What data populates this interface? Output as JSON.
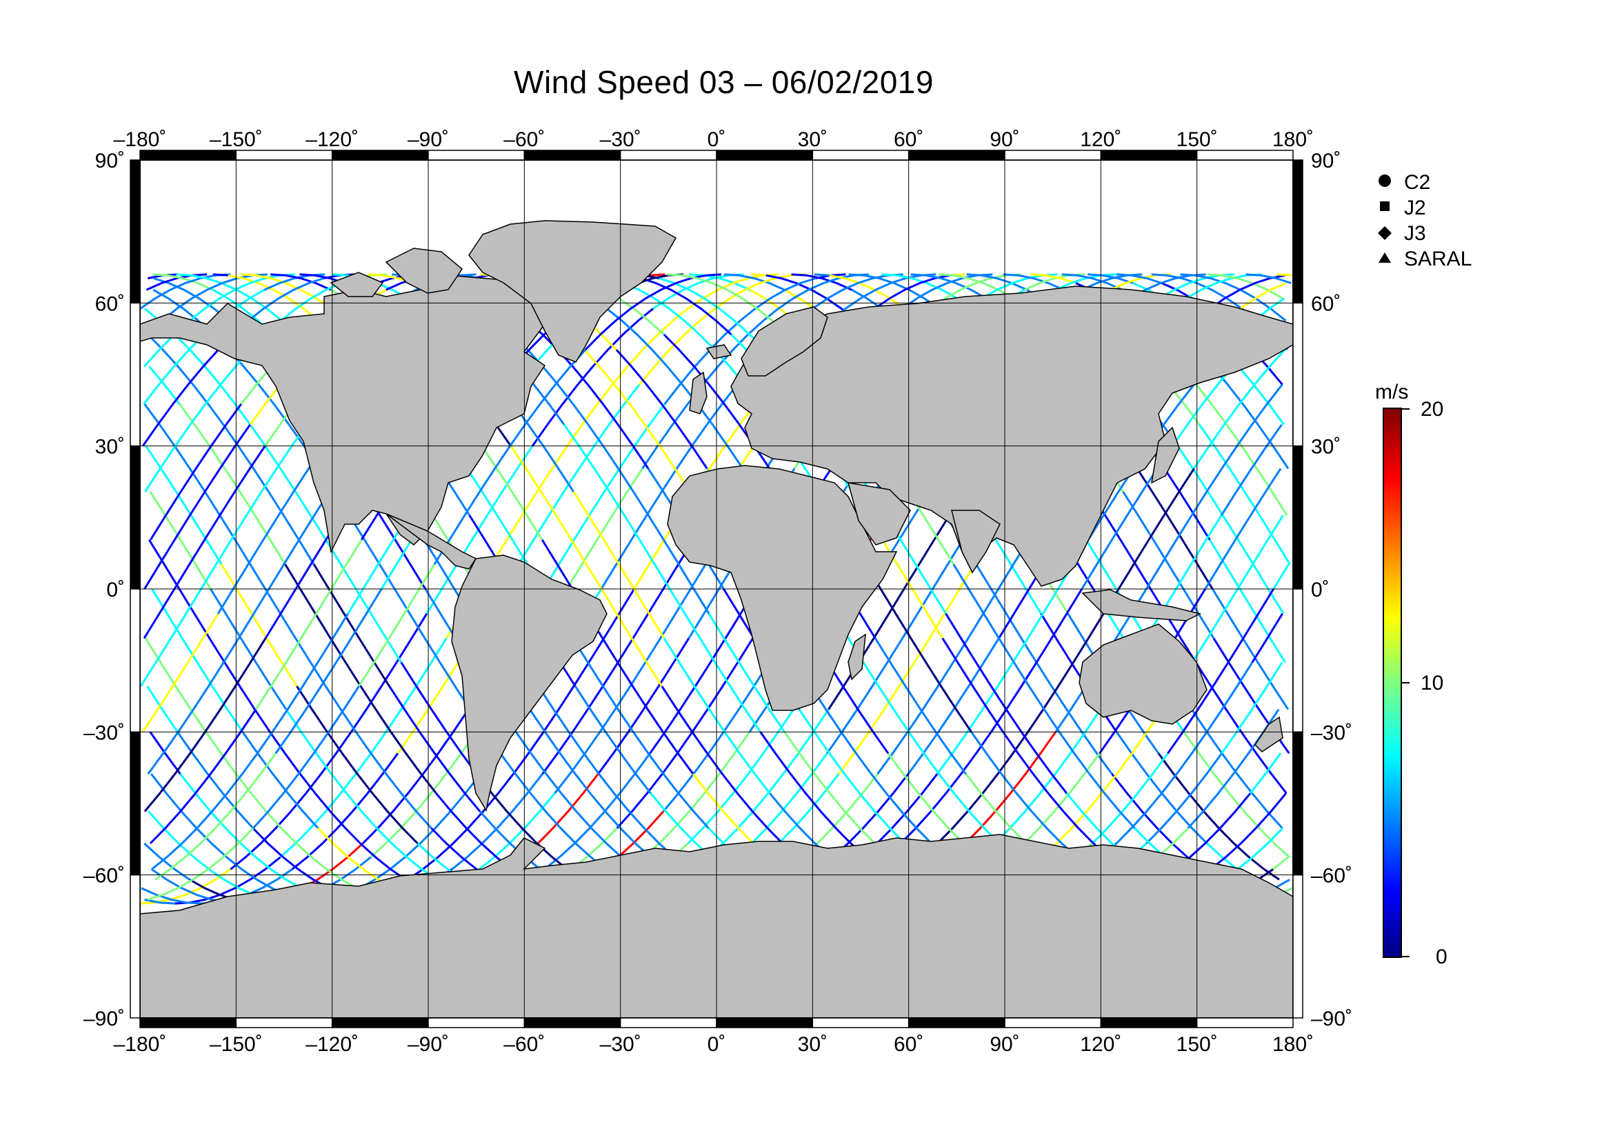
{
  "title": "Wind Speed 03 – 06/02/2019",
  "x_ticks": [
    "–180˚",
    "–150˚",
    "–120˚",
    "–90˚",
    "–60˚",
    "–30˚",
    "0˚",
    "30˚",
    "60˚",
    "90˚",
    "120˚",
    "150˚",
    "180˚"
  ],
  "y_ticks": [
    "90˚",
    "60˚",
    "30˚",
    "0˚",
    "–30˚",
    "–60˚",
    "–90˚"
  ],
  "legend": [
    {
      "symbol": "circle",
      "label": "C2"
    },
    {
      "symbol": "square",
      "label": "J2"
    },
    {
      "symbol": "diamond",
      "label": "J3"
    },
    {
      "symbol": "triangle",
      "label": "SARAL"
    }
  ],
  "colorbar": {
    "unit": "m/s",
    "ticks": [
      "20",
      "10",
      "0"
    ],
    "range": [
      0,
      20
    ],
    "colors": [
      "#00007f",
      "#0000ff",
      "#007fff",
      "#00ffff",
      "#7fff7f",
      "#ffff00",
      "#ff7f00",
      "#ff0000",
      "#7f0000"
    ]
  },
  "map": {
    "lon_range": [
      -180,
      180
    ],
    "lat_range": [
      -90,
      90
    ],
    "land_color": "#bebebe",
    "grid_lon_step": 30,
    "grid_lat_step": 30
  }
}
